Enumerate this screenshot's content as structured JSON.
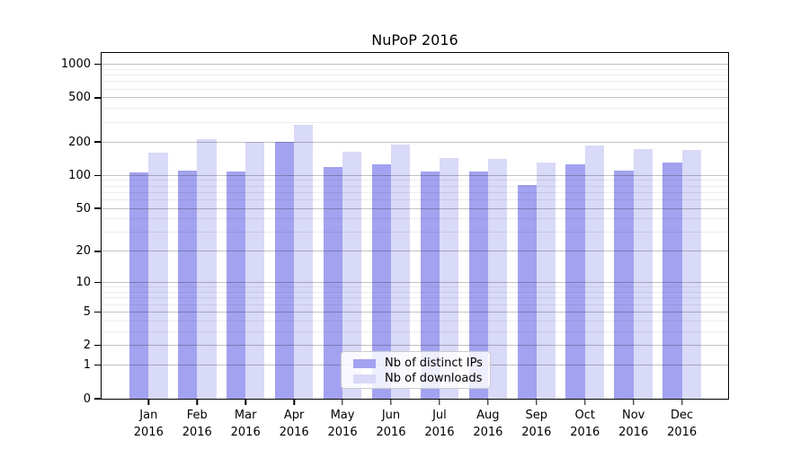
{
  "colors": {
    "distinct_ips": "#a2a2f0",
    "downloads": "#d9d9f8",
    "grid_major": "rgba(0,0,0,0.24)",
    "grid_minor": "rgba(0,0,0,0.07)",
    "spine": "#000000",
    "legend_border": "#cccccc"
  },
  "legend": {
    "items": [
      {
        "label": "Nb of distinct IPs",
        "series": "distinct_ips"
      },
      {
        "label": "Nb of downloads",
        "series": "downloads"
      }
    ]
  },
  "chart_data": {
    "type": "bar",
    "title": "NuPoP 2016",
    "categories": [
      "Jan",
      "Feb",
      "Mar",
      "Apr",
      "May",
      "Jun",
      "Jul",
      "Aug",
      "Sep",
      "Oct",
      "Nov",
      "Dec"
    ],
    "year_label": "2016",
    "series": [
      {
        "name": "Nb of distinct IPs",
        "values": [
          106,
          111,
          109,
          202,
          120,
          127,
          108,
          108,
          82,
          127,
          110,
          130
        ]
      },
      {
        "name": "Nb of downloads",
        "values": [
          160,
          214,
          199,
          284,
          162,
          190,
          144,
          142,
          130,
          187,
          173,
          171
        ]
      }
    ],
    "xlabel": "",
    "ylabel": "",
    "y_scale": "log10(value+1)",
    "ylim": [
      0,
      1260
    ],
    "y_ticks": [
      0,
      1,
      2,
      5,
      10,
      20,
      50,
      100,
      200,
      500,
      1000
    ],
    "y_minor_ticks": [
      3,
      4,
      6,
      7,
      8,
      9,
      30,
      40,
      60,
      70,
      80,
      90,
      300,
      400,
      600,
      700,
      800,
      900
    ],
    "grid": "on",
    "legend_position": "lower center"
  }
}
